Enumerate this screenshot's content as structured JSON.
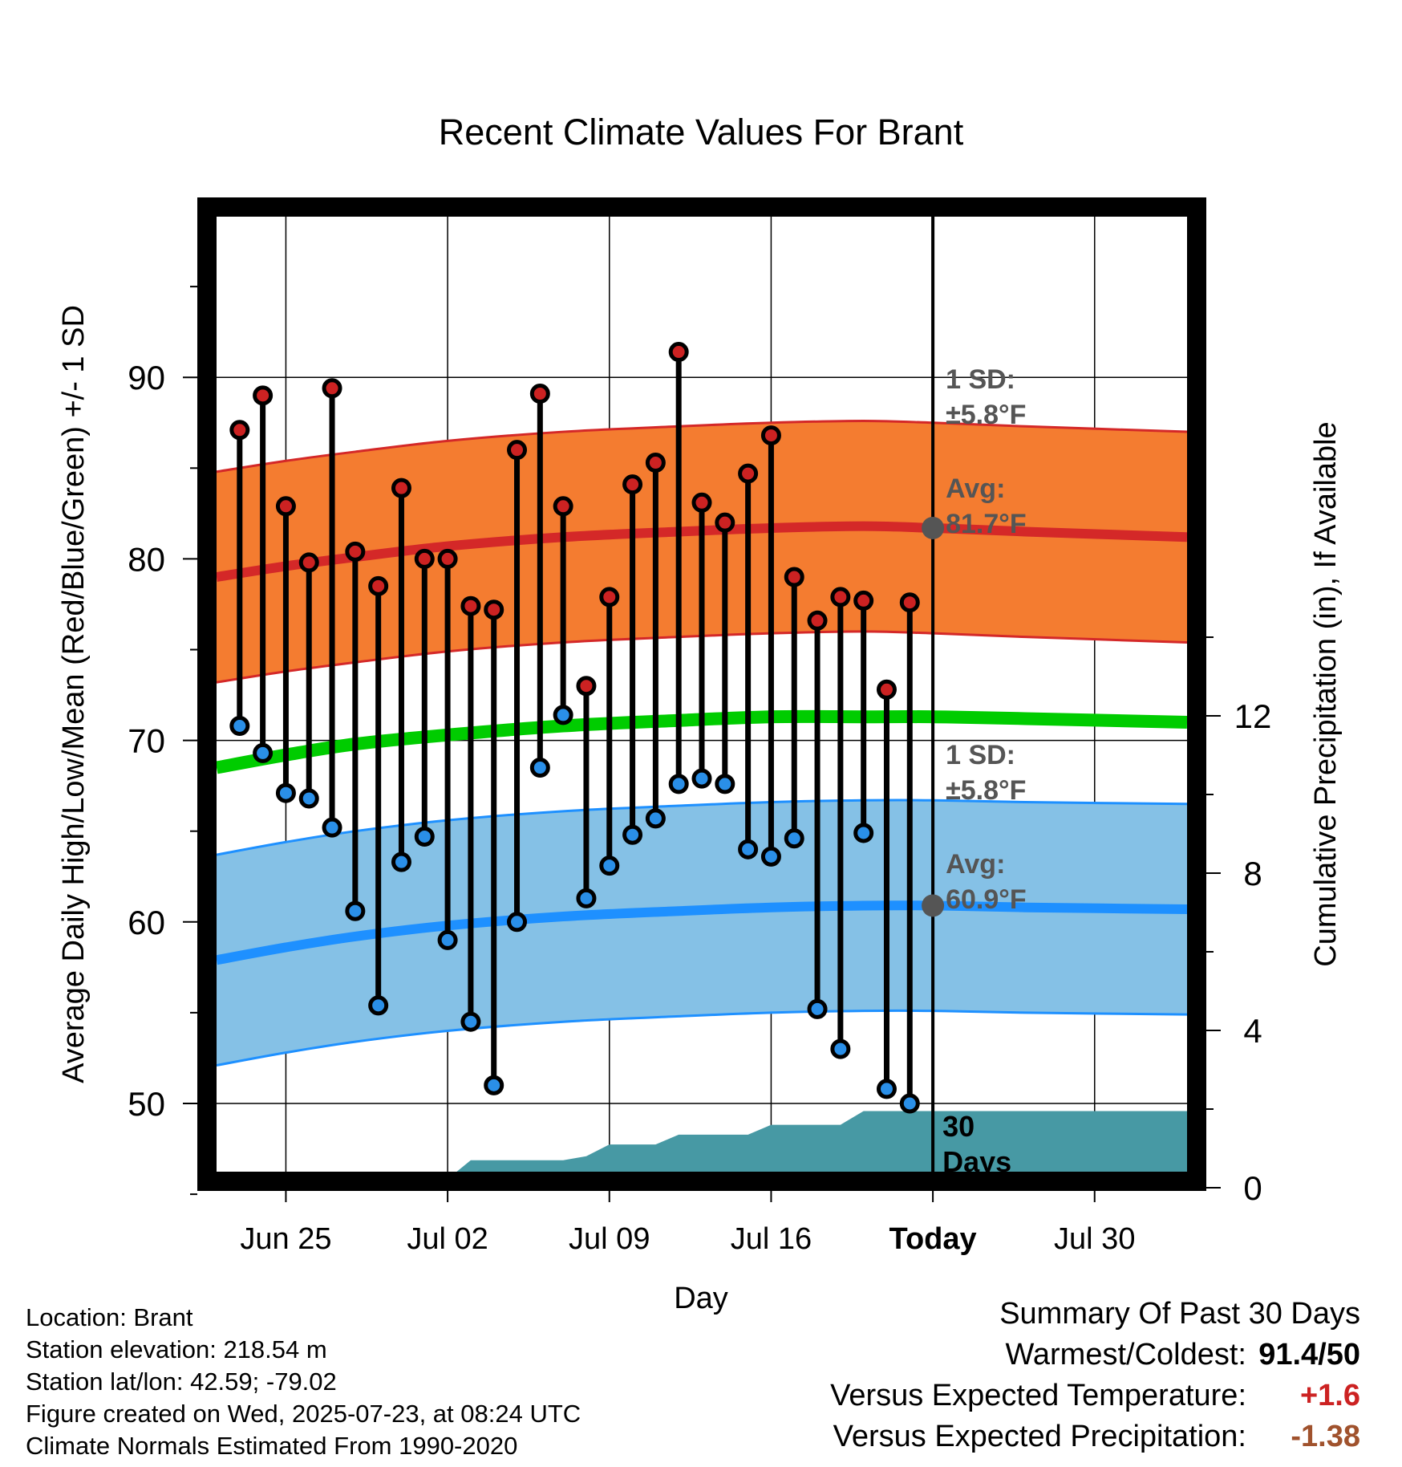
{
  "chart_data": {
    "type": "line",
    "title": "Recent Climate Values For Brant",
    "xlabel": "Day",
    "ylabel": "Average Daily High/Low/Mean (Red/Blue/Green) +/- 1 SD",
    "y2label": "Cumulative Precipitation (in), If Available",
    "x_ticks": [
      "Jun 25",
      "Jul 02",
      "Jul 09",
      "Jul 16",
      "Today",
      "Jul 30"
    ],
    "x_tick_dates": [
      "2025-06-25",
      "2025-07-02",
      "2025-07-09",
      "2025-07-16",
      "2025-07-23",
      "2025-07-30"
    ],
    "xlim": [
      "2025-06-22",
      "2025-08-03"
    ],
    "ylim": [
      42.5,
      96.5
    ],
    "y_ticks": [
      50,
      60,
      70,
      80,
      90
    ],
    "y2lim": [
      0,
      24.5
    ],
    "y2_ticks": [
      0,
      4,
      8,
      12
    ],
    "grid": true,
    "today": "2025-07-23",
    "dates": [
      "2025-06-22",
      "2025-06-23",
      "2025-06-24",
      "2025-06-25",
      "2025-06-26",
      "2025-06-27",
      "2025-06-28",
      "2025-06-29",
      "2025-06-30",
      "2025-07-01",
      "2025-07-02",
      "2025-07-03",
      "2025-07-04",
      "2025-07-05",
      "2025-07-06",
      "2025-07-07",
      "2025-07-08",
      "2025-07-09",
      "2025-07-10",
      "2025-07-11",
      "2025-07-12",
      "2025-07-13",
      "2025-07-14",
      "2025-07-15",
      "2025-07-16",
      "2025-07-17",
      "2025-07-18",
      "2025-07-19",
      "2025-07-20",
      "2025-07-21",
      "2025-07-22"
    ],
    "daily_high": [
      87.1,
      89.0,
      82.9,
      79.8,
      89.4,
      80.4,
      78.5,
      83.9,
      80.0,
      80.0,
      77.4,
      77.2,
      86.0,
      89.1,
      82.9,
      73.0,
      77.9,
      84.1,
      85.3,
      91.4,
      83.1,
      82.0,
      84.7,
      86.8,
      79.0,
      76.6,
      77.9,
      77.7,
      72.8,
      77.6
    ],
    "daily_low": [
      70.8,
      69.3,
      67.1,
      66.8,
      65.2,
      60.6,
      55.4,
      63.3,
      64.7,
      59.0,
      54.5,
      51.0,
      60.0,
      68.5,
      71.4,
      61.3,
      63.1,
      64.8,
      65.7,
      67.6,
      67.9,
      67.6,
      64.0,
      63.6,
      64.6,
      55.2,
      53.0,
      64.9,
      50.8,
      50.0
    ],
    "high_dates": [
      "2025-06-23",
      "2025-06-24",
      "2025-06-25",
      "2025-06-26",
      "2025-06-27",
      "2025-06-28",
      "2025-06-29",
      "2025-06-30",
      "2025-07-01",
      "2025-07-02",
      "2025-07-03",
      "2025-07-04",
      "2025-07-05",
      "2025-07-06",
      "2025-07-07",
      "2025-07-08",
      "2025-07-09",
      "2025-07-10",
      "2025-07-11",
      "2025-07-12",
      "2025-07-13",
      "2025-07-14",
      "2025-07-15",
      "2025-07-16",
      "2025-07-17",
      "2025-07-18",
      "2025-07-19",
      "2025-07-20",
      "2025-07-21",
      "2025-07-22"
    ],
    "normal_dates": [
      "2025-06-22",
      "2025-06-25",
      "2025-06-28",
      "2025-07-02",
      "2025-07-07",
      "2025-07-12",
      "2025-07-16",
      "2025-07-20",
      "2025-07-23",
      "2025-07-27",
      "2025-08-03"
    ],
    "normal_high": [
      79.0,
      79.6,
      80.1,
      80.7,
      81.2,
      81.5,
      81.7,
      81.8,
      81.7,
      81.5,
      81.2
    ],
    "normal_mean": [
      68.5,
      69.2,
      69.8,
      70.3,
      70.8,
      71.1,
      71.3,
      71.3,
      71.3,
      71.2,
      71.0
    ],
    "normal_low": [
      57.9,
      58.6,
      59.2,
      59.8,
      60.3,
      60.6,
      60.8,
      60.9,
      60.9,
      60.8,
      60.7
    ],
    "sd": 5.8,
    "precip_dates": [
      "2025-06-22",
      "2025-06-29",
      "2025-06-30",
      "2025-07-02",
      "2025-07-03",
      "2025-07-07",
      "2025-07-08",
      "2025-07-09",
      "2025-07-11",
      "2025-07-12",
      "2025-07-15",
      "2025-07-16",
      "2025-07-19",
      "2025-07-20",
      "2025-07-22",
      "2025-08-03"
    ],
    "precip_cum": [
      0,
      0,
      0.22,
      0.22,
      0.7,
      0.7,
      0.8,
      1.1,
      1.1,
      1.35,
      1.35,
      1.6,
      1.6,
      1.95,
      1.95,
      1.95
    ],
    "annotations": {
      "high_sd_label": "1 SD:",
      "high_sd_value": "±5.8°F",
      "high_avg_label": "Avg:",
      "high_avg_value": "81.7°F",
      "low_sd_label": "1 SD:",
      "low_sd_value": "±5.8°F",
      "low_avg_label": "Avg:",
      "low_avg_value": "60.9°F",
      "precip_label_line1": "30",
      "precip_label_line2": "Days"
    },
    "colors": {
      "high_band": "#f47c30",
      "high_line": "#d42828",
      "low_band": "#85c1e6",
      "low_line": "#1e90ff",
      "mean_line": "#00cc00",
      "precip": "#4799a4",
      "high_marker": "#cc2222",
      "low_marker": "#2a8fe8",
      "annotation": "#555555"
    }
  },
  "info": {
    "location": "Location: Brant",
    "elevation": "Station elevation: 218.54 m",
    "latlon": "Station lat/lon: 42.59; -79.02",
    "created": "Figure created on Wed, 2025-07-23, at 08:24 UTC",
    "normals": "Climate Normals Estimated From 1990-2020"
  },
  "summary": {
    "title": "Summary Of Past 30 Days",
    "warm_cold_label": "Warmest/Coldest:",
    "warm_cold_value": "91.4/50",
    "temp_label": "Versus Expected Temperature:",
    "temp_value": "+1.6",
    "temp_color": "#cc2222",
    "precip_label": "Versus Expected Precipitation:",
    "precip_value": "-1.38",
    "precip_color": "#a0522d"
  }
}
